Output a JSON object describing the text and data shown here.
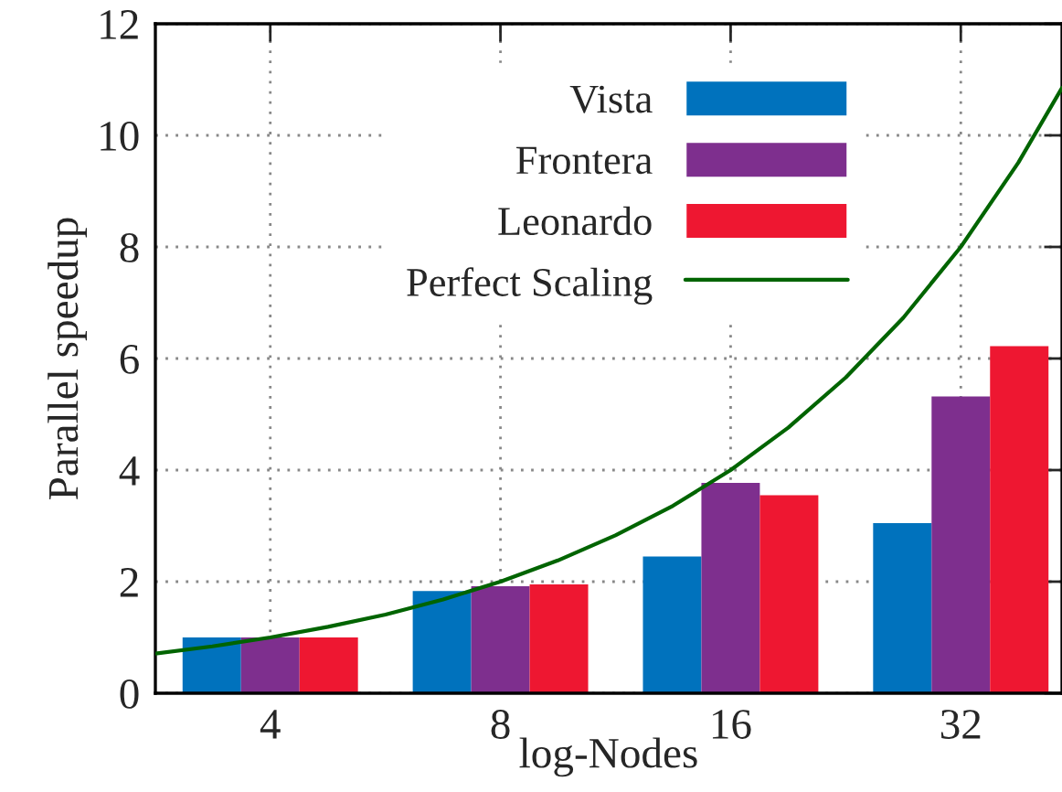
{
  "chart_data": {
    "type": "bar",
    "xlabel": "log-Nodes",
    "ylabel": "Parallel speedup",
    "x": [
      4,
      8,
      16,
      32
    ],
    "log": "x",
    "xlim": [
      2.83,
      43.4
    ],
    "xticks": [
      4,
      8,
      16,
      32
    ],
    "ylim": [
      0,
      12
    ],
    "yticks": [
      0,
      2,
      4,
      6,
      8,
      10,
      12
    ],
    "grid": true,
    "legend": "top",
    "series": [
      {
        "name": "Vista",
        "color": "#0072bd",
        "values": [
          1.0,
          1.83,
          2.45,
          3.05
        ]
      },
      {
        "name": "Frontera",
        "color": "#7e2f8e",
        "values": [
          1.0,
          1.92,
          3.77,
          5.32
        ]
      },
      {
        "name": "Leonardo",
        "color": "#ee1731",
        "values": [
          1.0,
          1.95,
          3.55,
          6.22
        ]
      },
      {
        "name": "Perfect Scaling",
        "type": "line",
        "color": "#006400",
        "x": [
          2.83,
          3.36,
          4,
          4.76,
          5.66,
          6.73,
          8,
          9.51,
          11.31,
          13.45,
          16,
          19.03,
          22.63,
          26.91,
          32,
          38.05,
          43.4
        ],
        "values": [
          0.71,
          0.84,
          1,
          1.19,
          1.41,
          1.68,
          2,
          2.38,
          2.83,
          3.36,
          4,
          4.76,
          5.66,
          6.73,
          8,
          9.51,
          10.85
        ]
      }
    ]
  }
}
